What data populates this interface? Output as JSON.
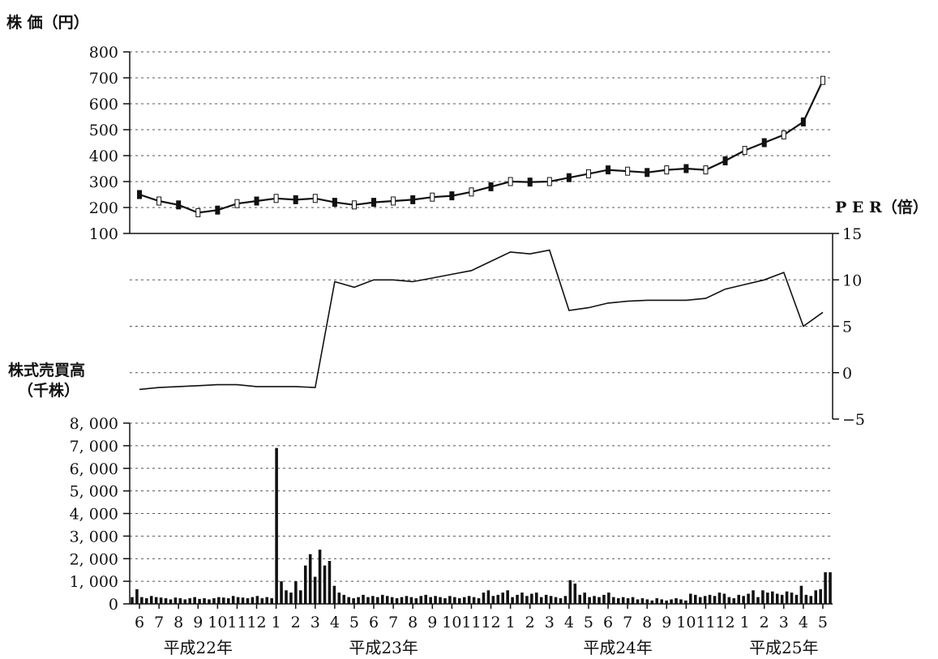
{
  "chart_data": [
    {
      "type": "line",
      "panel": "price",
      "ylabel": "株 価（円）",
      "ylim": [
        100,
        800
      ],
      "yticks": [
        "800",
        "700",
        "600",
        "500",
        "400",
        "300",
        "200",
        "100"
      ],
      "grid": true,
      "x": [
        "2010-06",
        "2010-07",
        "2010-08",
        "2010-09",
        "2010-10",
        "2010-11",
        "2010-12",
        "2011-01",
        "2011-02",
        "2011-03",
        "2011-04",
        "2011-05",
        "2011-06",
        "2011-07",
        "2011-08",
        "2011-09",
        "2011-10",
        "2011-11",
        "2011-12",
        "2012-01",
        "2012-02",
        "2012-03",
        "2012-04",
        "2012-05",
        "2012-06",
        "2012-07",
        "2012-08",
        "2012-09",
        "2012-10",
        "2012-11",
        "2012-12",
        "2013-01",
        "2013-02",
        "2013-03",
        "2013-04",
        "2013-05"
      ],
      "series": [
        {
          "values": [
            250,
            225,
            210,
            180,
            190,
            215,
            225,
            235,
            230,
            235,
            220,
            210,
            220,
            225,
            230,
            240,
            245,
            260,
            280,
            300,
            298,
            300,
            315,
            330,
            345,
            340,
            335,
            345,
            350,
            345,
            380,
            420,
            450,
            480,
            530,
            690
          ]
        }
      ]
    },
    {
      "type": "line",
      "panel": "per",
      "ylabel": "P E R（倍）",
      "ylim": [
        -5,
        15
      ],
      "yticks": [
        "15",
        "10",
        "5",
        "0",
        "−5"
      ],
      "grid": true,
      "x": [
        "2010-06",
        "2010-07",
        "2010-08",
        "2010-09",
        "2010-10",
        "2010-11",
        "2010-12",
        "2011-01",
        "2011-02",
        "2011-03",
        "2011-04",
        "2011-05",
        "2011-06",
        "2011-07",
        "2011-08",
        "2011-09",
        "2011-10",
        "2011-11",
        "2011-12",
        "2012-01",
        "2012-02",
        "2012-03",
        "2012-04",
        "2012-05",
        "2012-06",
        "2012-07",
        "2012-08",
        "2012-09",
        "2012-10",
        "2012-11",
        "2012-12",
        "2013-01",
        "2013-02",
        "2013-03",
        "2013-04",
        "2013-05"
      ],
      "series": [
        {
          "values": [
            -1.8,
            -1.6,
            -1.5,
            -1.4,
            -1.3,
            -1.3,
            -1.5,
            -1.5,
            -1.5,
            -1.6,
            9.8,
            9.2,
            10.0,
            10.0,
            9.8,
            10.2,
            10.6,
            11.0,
            12.0,
            13.0,
            12.8,
            13.2,
            6.7,
            7.0,
            7.5,
            7.7,
            7.8,
            7.8,
            7.8,
            8.0,
            9.0,
            9.5,
            10.0,
            10.8,
            5.0,
            6.5
          ]
        }
      ]
    },
    {
      "type": "bar",
      "panel": "volume",
      "ylabel": "株式売買高（千株）",
      "ylim": [
        0,
        8000
      ],
      "yticks": [
        "8, 000",
        "7, 000",
        "6, 000",
        "5, 000",
        "4, 000",
        "3, 000",
        "2, 000",
        "1, 000",
        "0"
      ],
      "grid": true,
      "categories": [
        "2010-06",
        "2010-07",
        "2010-08",
        "2010-09",
        "2010-10",
        "2010-11",
        "2010-12",
        "2011-01",
        "2011-02",
        "2011-03",
        "2011-04",
        "2011-05",
        "2011-06",
        "2011-07",
        "2011-08",
        "2011-09",
        "2011-10",
        "2011-11",
        "2011-12",
        "2012-01",
        "2012-02",
        "2012-03",
        "2012-04",
        "2012-05",
        "2012-06",
        "2012-07",
        "2012-08",
        "2012-09",
        "2012-10",
        "2012-11",
        "2012-12",
        "2013-01",
        "2013-02",
        "2013-03",
        "2013-04",
        "2013-05"
      ],
      "weekly_values": [
        300,
        650,
        300,
        250,
        350,
        300,
        280,
        250,
        200,
        280,
        250,
        200,
        250,
        300,
        220,
        250,
        200,
        250,
        300,
        280,
        250,
        350,
        300,
        280,
        250,
        300,
        350,
        250,
        300,
        250,
        6900,
        1000,
        600,
        500,
        1000,
        600,
        1700,
        2200,
        1200,
        2400,
        1700,
        1900,
        800,
        500,
        400,
        300,
        250,
        300,
        400,
        300,
        350,
        300,
        400,
        350,
        300,
        250,
        300,
        350,
        300,
        250,
        350,
        400,
        300,
        350,
        300,
        250,
        350,
        300,
        250,
        300,
        350,
        300,
        250,
        500,
        600,
        350,
        400,
        500,
        600,
        300,
        400,
        500,
        350,
        450,
        500,
        300,
        400,
        350,
        300,
        250,
        350,
        1050,
        900,
        400,
        500,
        300,
        350,
        300,
        400,
        500,
        300,
        250,
        300,
        250,
        300,
        200,
        250,
        200,
        150,
        250,
        200,
        150,
        200,
        250,
        200,
        150,
        450,
        400,
        300,
        350,
        400,
        350,
        500,
        450,
        300,
        250,
        400,
        350,
        450,
        600,
        300,
        600,
        500,
        550,
        450,
        400,
        550,
        500,
        400,
        800,
        400,
        350,
        600,
        650,
        1400,
        1400
      ]
    }
  ],
  "x_axis": {
    "month_labels": [
      "6",
      "7",
      "8",
      "9",
      "10",
      "11",
      "12",
      "1",
      "2",
      "3",
      "4",
      "5",
      "6",
      "7",
      "8",
      "9",
      "10",
      "11",
      "12",
      "1",
      "2",
      "3",
      "4",
      "5",
      "6",
      "7",
      "8",
      "9",
      "10",
      "11",
      "12",
      "1",
      "2",
      "3",
      "4",
      "5"
    ],
    "era_labels": [
      "平成22年",
      "平成23年",
      "平成24年",
      "平成25年"
    ]
  }
}
